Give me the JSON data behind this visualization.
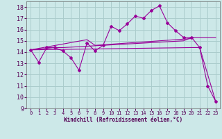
{
  "background_color": "#cce8e8",
  "grid_color": "#aacccc",
  "line_color": "#990099",
  "x_label": "Windchill (Refroidissement éolien,°C)",
  "x_ticks": [
    0,
    1,
    2,
    3,
    4,
    5,
    6,
    7,
    8,
    9,
    10,
    11,
    12,
    13,
    14,
    15,
    16,
    17,
    18,
    19,
    20,
    21,
    22,
    23
  ],
  "ylim": [
    9,
    18.5
  ],
  "y_ticks": [
    9,
    10,
    11,
    12,
    13,
    14,
    15,
    16,
    17,
    18
  ],
  "xlim": [
    -0.5,
    23.5
  ],
  "series1_x": [
    0,
    1,
    2,
    3,
    4,
    5,
    6,
    7,
    8,
    9,
    10,
    11,
    12,
    13,
    14,
    15,
    16,
    17,
    18,
    19,
    20,
    21,
    22,
    23
  ],
  "series1_y": [
    14.2,
    13.1,
    14.4,
    14.4,
    14.1,
    13.5,
    12.4,
    14.8,
    14.1,
    14.6,
    16.3,
    15.9,
    16.5,
    17.2,
    17.0,
    17.7,
    18.1,
    16.6,
    15.9,
    15.3,
    15.3,
    14.4,
    11.0,
    9.6
  ],
  "series2_x": [
    0,
    3,
    4,
    19,
    20,
    23
  ],
  "series2_y": [
    14.2,
    14.4,
    14.4,
    15.0,
    15.3,
    15.3
  ],
  "series3_x": [
    0,
    7,
    8,
    20
  ],
  "series3_y": [
    14.2,
    15.1,
    14.6,
    15.2
  ],
  "series4_x": [
    0,
    20,
    21,
    23
  ],
  "series4_y": [
    14.2,
    14.4,
    14.4,
    9.6
  ]
}
